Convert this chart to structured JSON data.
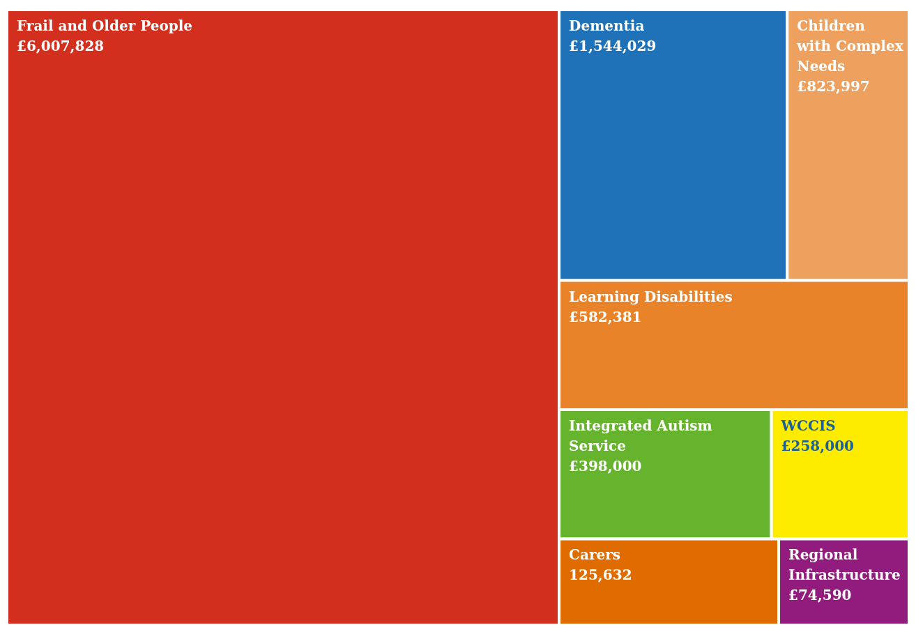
{
  "chart_data": {
    "type": "other",
    "categories": [
      "Frail and Older People",
      "Dementia",
      "Children with Complex Needs",
      "Learning Disabilities",
      "Integrated Autism Service",
      "WCCIS",
      "Carers",
      "Regional Infrastructure"
    ],
    "values": [
      6007828,
      1544029,
      823997,
      582381,
      398000,
      258000,
      125632,
      74590
    ],
    "value_labels": [
      "£6,007,828",
      "£1,544,029",
      "£823,997",
      "£582,381",
      "£398,000",
      "£258,000",
      "125,632",
      "£74,590"
    ],
    "colors": [
      "#d22f1e",
      "#1f72b8",
      "#eea05e",
      "#e9832a",
      "#66b32e",
      "#feec00",
      "#e06c00",
      "#921b7e"
    ]
  }
}
